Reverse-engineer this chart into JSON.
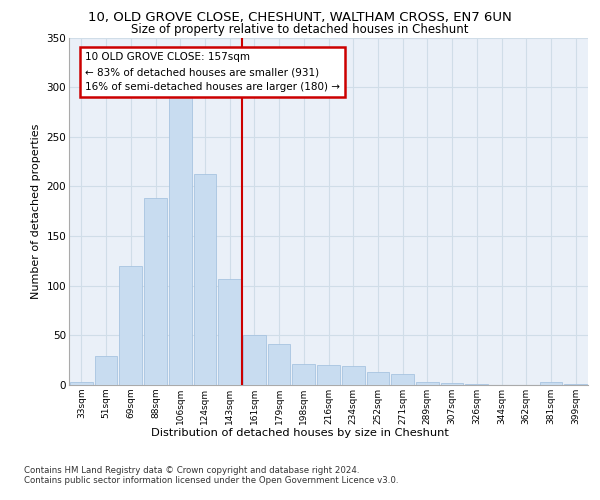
{
  "title_line1": "10, OLD GROVE CLOSE, CHESHUNT, WALTHAM CROSS, EN7 6UN",
  "title_line2": "Size of property relative to detached houses in Cheshunt",
  "xlabel": "Distribution of detached houses by size in Cheshunt",
  "ylabel": "Number of detached properties",
  "categories": [
    "33sqm",
    "51sqm",
    "69sqm",
    "88sqm",
    "106sqm",
    "124sqm",
    "143sqm",
    "161sqm",
    "179sqm",
    "198sqm",
    "216sqm",
    "234sqm",
    "252sqm",
    "271sqm",
    "289sqm",
    "307sqm",
    "326sqm",
    "344sqm",
    "362sqm",
    "381sqm",
    "399sqm"
  ],
  "values": [
    3,
    29,
    120,
    188,
    291,
    213,
    107,
    50,
    41,
    21,
    20,
    19,
    13,
    11,
    3,
    2,
    1,
    0,
    0,
    3,
    1
  ],
  "bar_color": "#c8dcf0",
  "bar_edge_color": "#a8c4e0",
  "vline_color": "#cc0000",
  "annotation_box_edge_color": "#cc0000",
  "annotation_line1": "10 OLD GROVE CLOSE: 157sqm",
  "annotation_line2": "← 83% of detached houses are smaller (931)",
  "annotation_line3": "16% of semi-detached houses are larger (180) →",
  "grid_color": "#d0dde8",
  "background_color": "#eaf0f8",
  "footer_line1": "Contains HM Land Registry data © Crown copyright and database right 2024.",
  "footer_line2": "Contains public sector information licensed under the Open Government Licence v3.0.",
  "ylim": [
    0,
    350
  ],
  "yticks": [
    0,
    50,
    100,
    150,
    200,
    250,
    300,
    350
  ],
  "vline_x": 6.5
}
